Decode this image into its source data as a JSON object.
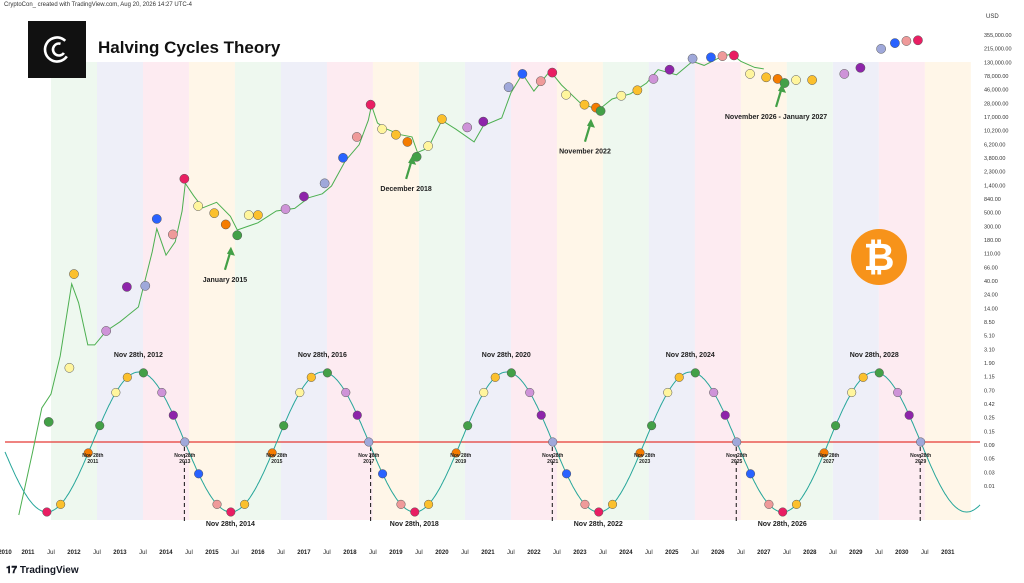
{
  "header": "CryptoCon_ created with TradingView.com, Aug 20, 2026 14:27 UTC-4",
  "title": "Halving Cycles Theory",
  "footer": "TradingView",
  "currency": "USD",
  "btc_symbol": "₿",
  "colors": {
    "green": "#43a047",
    "yellow_light": "#fff59d",
    "yellow": "#fbc02d",
    "orange": "#f57c00",
    "purple_light": "#ce93d8",
    "purple": "#8e24aa",
    "blue_light": "#9fa8da",
    "blue": "#2962ff",
    "pink_light": "#ef9a9a",
    "pink": "#e91e63",
    "red_line": "#e53935",
    "curve": "#26a69a",
    "price": "#4caf50"
  },
  "chart_data": {
    "type": "line",
    "x_axis_labels": [
      "2010",
      "2011",
      "Jul",
      "2012",
      "Jul",
      "2013",
      "Jul",
      "2014",
      "Jul",
      "2015",
      "Jul",
      "2016",
      "Jul",
      "2017",
      "Jul",
      "2018",
      "Jul",
      "2019",
      "Jul",
      "2020",
      "Jul",
      "2021",
      "Jul",
      "2022",
      "Jul",
      "2023",
      "Jul",
      "2024",
      "Jul",
      "2025",
      "Jul",
      "2026",
      "Jul",
      "2027",
      "Jul",
      "2028",
      "Jul",
      "2029",
      "Jul",
      "2030",
      "Jul",
      "2031"
    ],
    "y_axis_labels": [
      "355,000.00",
      "215,000.00",
      "130,000.00",
      "78,000.00",
      "46,000.00",
      "28,000.00",
      "17,000.00",
      "10,200.00",
      "6,200.00",
      "3,800.00",
      "2,300.00",
      "1,400.00",
      "840.00",
      "500.00",
      "300.00",
      "180.00",
      "110.00",
      "66.00",
      "40.00",
      "24.00",
      "14.00",
      "8.50",
      "5.10",
      "3.10",
      "1.90",
      "1.15",
      "0.70",
      "0.42",
      "0.25",
      "0.15",
      "0.09",
      "0.05",
      "0.03",
      "0.01"
    ],
    "y_scale": "log",
    "y_range": [
      0.005,
      400000
    ],
    "x_range": [
      2010.0,
      2031.2
    ],
    "price_series": [
      [
        2010.3,
        0.006
      ],
      [
        2010.6,
        0.06
      ],
      [
        2010.8,
        0.3
      ],
      [
        2011.0,
        0.5
      ],
      [
        2011.2,
        2
      ],
      [
        2011.45,
        28
      ],
      [
        2011.6,
        14
      ],
      [
        2011.8,
        3
      ],
      [
        2011.95,
        3
      ],
      [
        2012.2,
        5
      ],
      [
        2012.5,
        7
      ],
      [
        2012.9,
        12
      ],
      [
        2013.2,
        90
      ],
      [
        2013.3,
        210
      ],
      [
        2013.5,
        80
      ],
      [
        2013.7,
        130
      ],
      [
        2013.85,
        400
      ],
      [
        2013.92,
        1100
      ],
      [
        2014.1,
        700
      ],
      [
        2014.3,
        450
      ],
      [
        2014.6,
        550
      ],
      [
        2014.9,
        330
      ],
      [
        2015.05,
        200
      ],
      [
        2015.5,
        260
      ],
      [
        2015.9,
        400
      ],
      [
        2016.3,
        440
      ],
      [
        2016.6,
        650
      ],
      [
        2016.9,
        750
      ],
      [
        2017.1,
        1000
      ],
      [
        2017.4,
        2500
      ],
      [
        2017.7,
        4500
      ],
      [
        2017.9,
        11000
      ],
      [
        2017.97,
        19000
      ],
      [
        2018.1,
        10000
      ],
      [
        2018.3,
        8000
      ],
      [
        2018.6,
        6500
      ],
      [
        2018.85,
        6000
      ],
      [
        2018.97,
        3400
      ],
      [
        2019.2,
        4000
      ],
      [
        2019.5,
        11000
      ],
      [
        2019.8,
        8000
      ],
      [
        2020.2,
        5000
      ],
      [
        2020.4,
        9000
      ],
      [
        2020.8,
        12000
      ],
      [
        2021.0,
        30000
      ],
      [
        2021.25,
        60000
      ],
      [
        2021.5,
        32000
      ],
      [
        2021.85,
        67000
      ],
      [
        2022.1,
        40000
      ],
      [
        2022.5,
        21000
      ],
      [
        2022.9,
        16000
      ],
      [
        2023.2,
        24000
      ],
      [
        2023.6,
        29000
      ],
      [
        2023.95,
        43000
      ],
      [
        2024.2,
        70000
      ],
      [
        2024.6,
        58000
      ],
      [
        2024.95,
        95000
      ],
      [
        2025.2,
        82000
      ],
      [
        2025.6,
        115000
      ],
      [
        2025.8,
        124000
      ],
      [
        2026.0,
        95000
      ],
      [
        2026.3,
        76000
      ],
      [
        2026.5,
        72000
      ]
    ],
    "cycle_curve_dates": [
      "Nov 28th, 2012",
      "Nov 28th, 2016",
      "Nov 28th, 2020",
      "Nov 28th, 2024",
      "Nov 28th, 2028"
    ],
    "cycle_trough_dates": [
      "Nov 28th, 2014",
      "Nov 28th, 2018",
      "Nov 28th, 2022",
      "Nov 28th, 2026"
    ],
    "cycle_cross_dates": [
      "Nov 28th 2011",
      "Nov 28th 2013",
      "Nov 28th 2015",
      "Nov 28th 2017",
      "Nov 28th 2019",
      "Nov 28th 2021",
      "Nov 28th 2023",
      "Nov 28th 2025",
      "Nov 28th 2027",
      "Nov 28th 2029"
    ],
    "bottom_annotations": [
      {
        "text": "January 2015",
        "x": 2015.0,
        "y": 130
      },
      {
        "text": "December 2018",
        "x": 2018.95,
        "y": 3600
      },
      {
        "text": "November 2022",
        "x": 2022.85,
        "y": 14000
      },
      {
        "text": "November 2026 - January 2027",
        "x": 2026.95,
        "y": 50000
      }
    ],
    "zero_line_value": 0.0
  }
}
